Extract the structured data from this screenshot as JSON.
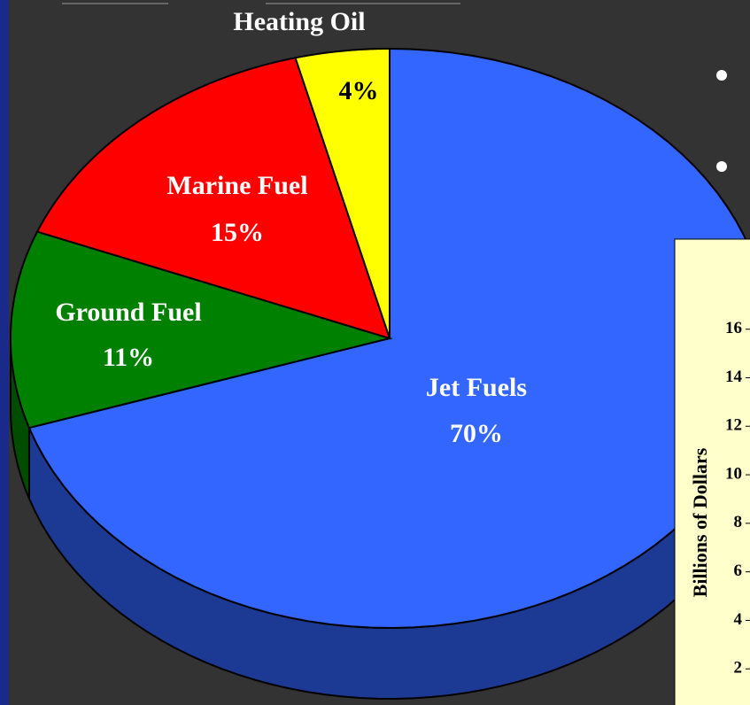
{
  "chart_data": [
    {
      "type": "pie",
      "categories": [
        "Jet Fuels",
        "Ground Fuel",
        "Marine Fuel",
        "Heating Oil"
      ],
      "values": [
        70,
        11,
        15,
        4
      ],
      "value_labels": [
        "70%",
        "11%",
        "15%",
        "4%"
      ],
      "colors": [
        "#3366ff",
        "#008000",
        "#ff0000",
        "#ffff00"
      ],
      "side_colors": [
        "#1c3a94",
        "#004d00",
        "#990000",
        "#999900"
      ]
    },
    {
      "type": "bar",
      "ylabel": "Billions of Dollars",
      "ylim": [
        0,
        16.5
      ],
      "yticks": [
        2,
        4,
        6,
        8,
        10,
        12,
        14,
        16
      ]
    }
  ]
}
